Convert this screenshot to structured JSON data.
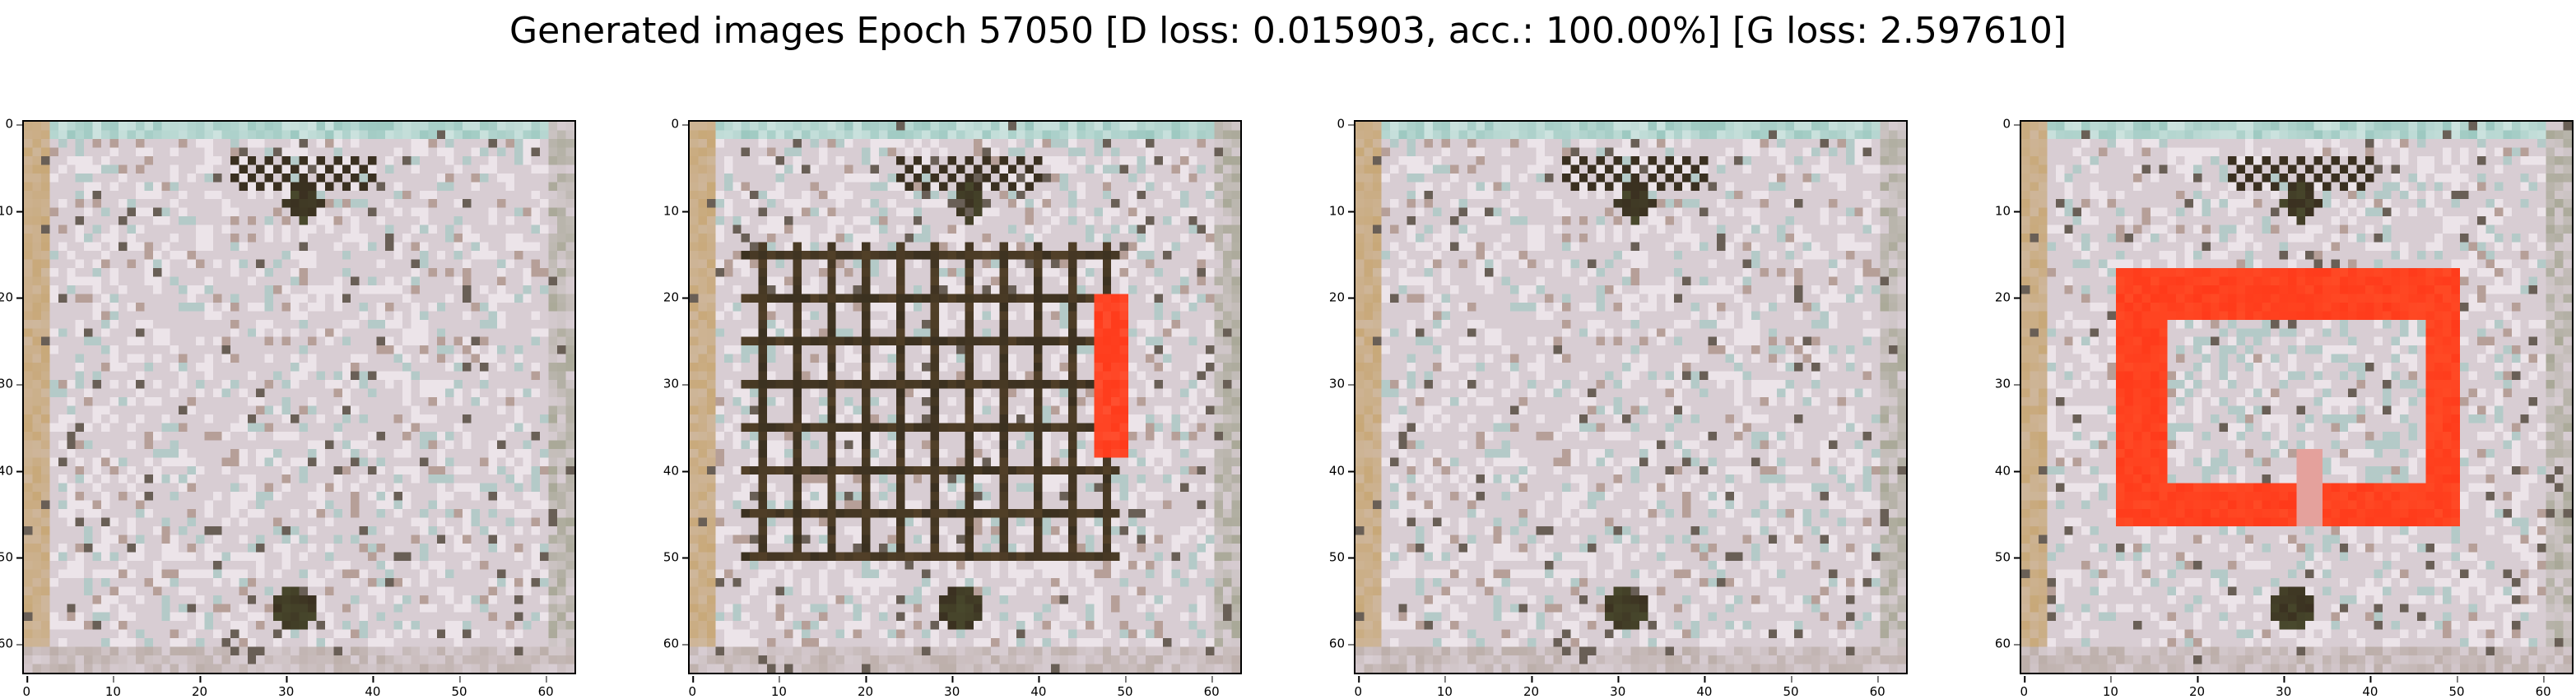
{
  "figure": {
    "title": "Generated images Epoch 57050 [D loss: 0.015903, acc.: 100.00%] [G loss: 2.597610]"
  },
  "chart_data": [
    {
      "type": "image",
      "description_kind": "generated-sample",
      "variant": "pale-grid",
      "xticks": [
        "0",
        "10",
        "20",
        "30",
        "40",
        "50",
        "60"
      ],
      "yticks": [
        "0",
        "10",
        "20",
        "30",
        "40",
        "50",
        "60"
      ],
      "xlim": [
        -0.5,
        63.5
      ],
      "ylim": [
        63.5,
        -0.5
      ]
    },
    {
      "type": "image",
      "description_kind": "generated-sample",
      "variant": "dark-grid-with-red-strip",
      "xticks": [
        "0",
        "10",
        "20",
        "30",
        "40",
        "50",
        "60"
      ],
      "yticks": [
        "0",
        "10",
        "20",
        "30",
        "40",
        "50",
        "60"
      ],
      "xlim": [
        -0.5,
        63.5
      ],
      "ylim": [
        63.5,
        -0.5
      ]
    },
    {
      "type": "image",
      "description_kind": "generated-sample",
      "variant": "pale-grid",
      "xticks": [
        "0",
        "10",
        "20",
        "30",
        "40",
        "50",
        "60"
      ],
      "yticks": [
        "0",
        "10",
        "20",
        "30",
        "40",
        "50",
        "60"
      ],
      "xlim": [
        -0.5,
        63.5
      ],
      "ylim": [
        63.5,
        -0.5
      ]
    },
    {
      "type": "image",
      "description_kind": "generated-sample",
      "variant": "red-frame",
      "xticks": [
        "0",
        "10",
        "20",
        "30",
        "40",
        "50",
        "60"
      ],
      "yticks": [
        "0",
        "10",
        "20",
        "30",
        "40",
        "50",
        "60"
      ],
      "xlim": [
        -0.5,
        63.5
      ],
      "ylim": [
        63.5,
        -0.5
      ]
    }
  ],
  "colors": {
    "base": "#d8cdd3",
    "dark": "#3a3020",
    "red": "#ff3a1a",
    "teal": "#9cc8c0",
    "tan": "#c8a878"
  }
}
